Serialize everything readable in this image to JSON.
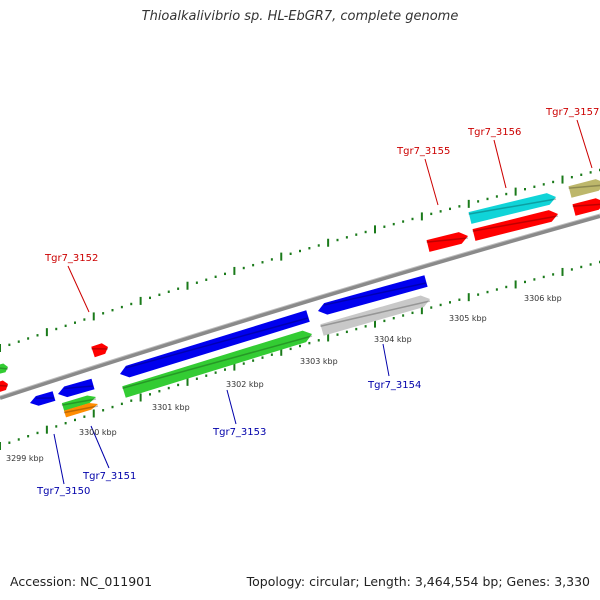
{
  "title": "Thioalkalivibrio sp. HL-EbGR7, complete genome",
  "footer": {
    "accession": "Accession: NC_011901",
    "topology": "Topology: circular; Length: 3,464,554 bp; Genes: 3,330"
  },
  "colors": {
    "backbone": "#8a8a8a",
    "tick": "#1a7a1a",
    "forward_label": "#cc0000",
    "reverse_label": "#0000aa",
    "red": "#ff0000",
    "cyan": "#10d4d8",
    "olive": "#bdb76b",
    "blue": "#0000ee",
    "green": "#33cc33",
    "gray": "#c8c8c8",
    "orange": "#ff8c00"
  },
  "kbp_labels": [
    "3299 kbp",
    "3300 kbp",
    "3301 kbp",
    "3302 kbp",
    "3303 kbp",
    "3304 kbp",
    "3305 kbp",
    "3306 kbp"
  ],
  "gene_labels": [
    {
      "id": "Tgr7_3150",
      "strand": "reverse"
    },
    {
      "id": "Tgr7_3151",
      "strand": "reverse"
    },
    {
      "id": "Tgr7_3152",
      "strand": "forward"
    },
    {
      "id": "Tgr7_3153",
      "strand": "reverse"
    },
    {
      "id": "Tgr7_3154",
      "strand": "reverse"
    },
    {
      "id": "Tgr7_3155",
      "strand": "forward"
    },
    {
      "id": "Tgr7_3156",
      "strand": "forward"
    },
    {
      "id": "Tgr7_3157",
      "strand": "forward"
    }
  ]
}
